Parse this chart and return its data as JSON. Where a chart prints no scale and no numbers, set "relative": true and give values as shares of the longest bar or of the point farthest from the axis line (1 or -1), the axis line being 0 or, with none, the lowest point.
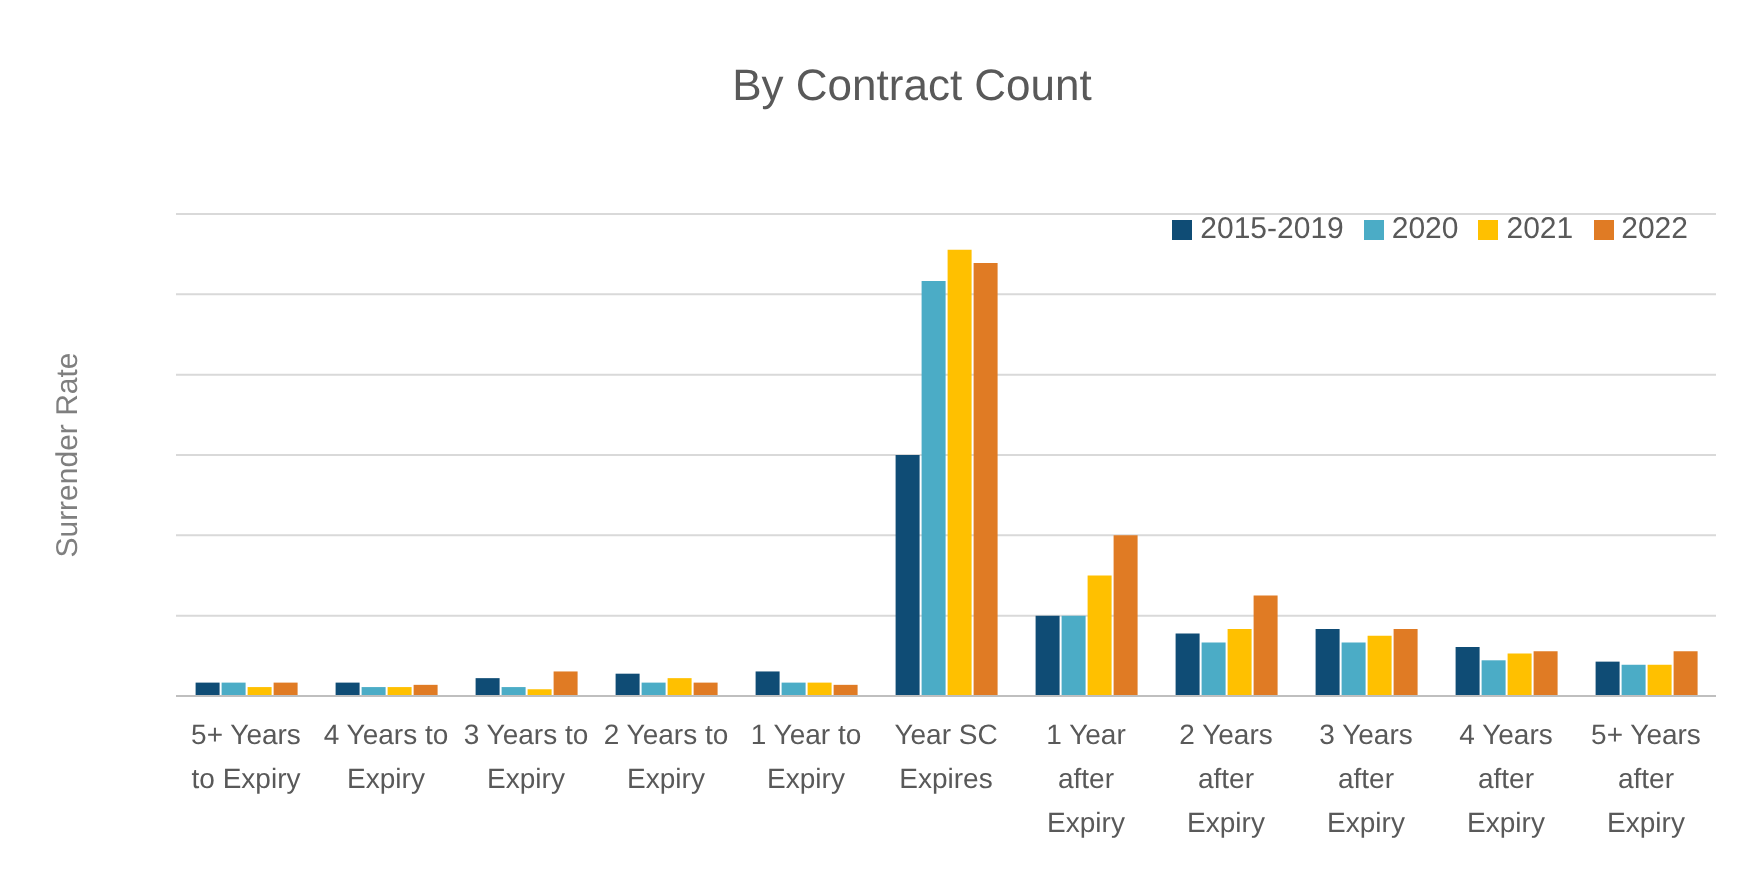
{
  "chart_data": {
    "type": "bar",
    "title": "By Contract Count",
    "ylabel": "Surrender Rate",
    "relative": true,
    "grid": "y",
    "legend": "top right",
    "categories": [
      "5+ Years to Expiry",
      "4 Years to Expiry",
      "3 Years to Expiry",
      "2 Years to Expiry",
      "1 Year to Expiry",
      "Year SC Expires",
      "1 Year after Expiry",
      "2 Years after Expiry",
      "3 Years after Expiry",
      "4 Years after Expiry",
      "5+ Years after Expiry"
    ],
    "series": [
      {
        "name": "2015-2019",
        "color": "#0f4c75",
        "values": [
          0.03,
          0.03,
          0.04,
          0.05,
          0.055,
          0.54,
          0.18,
          0.14,
          0.15,
          0.11,
          0.077
        ]
      },
      {
        "name": "2020",
        "color": "#4bacc6",
        "values": [
          0.03,
          0.02,
          0.02,
          0.03,
          0.03,
          0.93,
          0.18,
          0.12,
          0.12,
          0.08,
          0.07
        ]
      },
      {
        "name": "2021",
        "color": "#ffc000",
        "values": [
          0.02,
          0.02,
          0.015,
          0.04,
          0.03,
          1,
          0.27,
          0.15,
          0.135,
          0.095,
          0.07
        ]
      },
      {
        "name": "2022",
        "color": "#e07b24",
        "values": [
          0.03,
          0.025,
          0.055,
          0.03,
          0.025,
          0.97,
          0.36,
          0.225,
          0.15,
          0.1,
          0.1
        ]
      }
    ]
  }
}
